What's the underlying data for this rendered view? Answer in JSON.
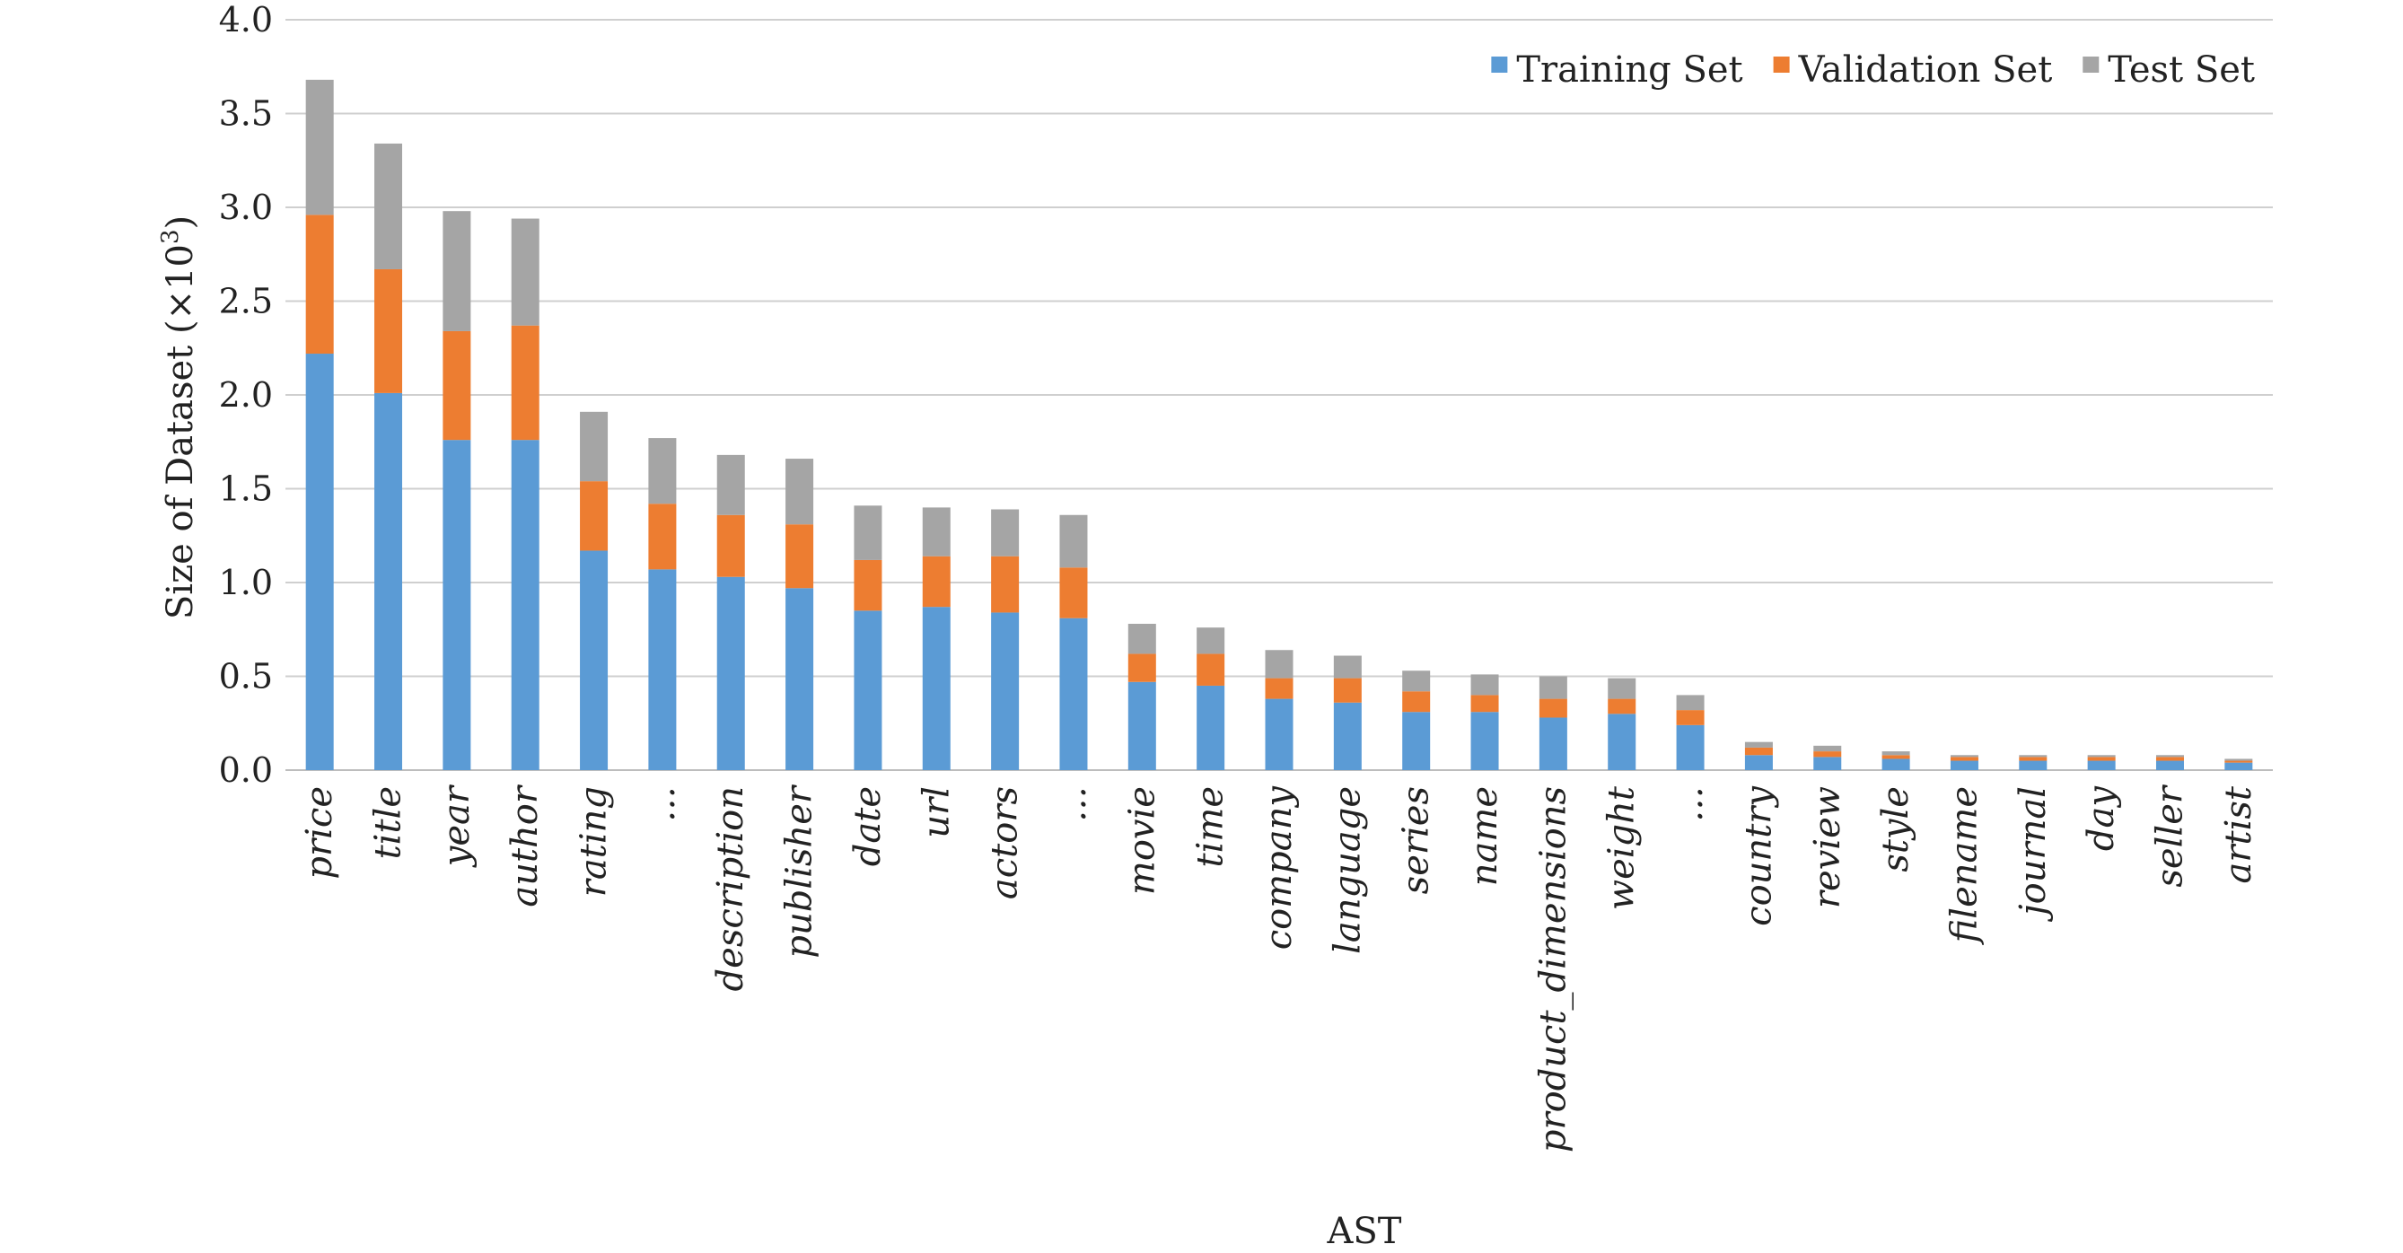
{
  "chart_data": {
    "type": "bar",
    "stacked": true,
    "title": "",
    "xlabel": "AST",
    "ylabel_prefix": "Size of Dataset (×10",
    "ylabel_exp": "3",
    "ylabel_suffix": ")",
    "ylim": [
      0,
      4.0
    ],
    "yticks": [
      "0.0",
      "0.5",
      "1.0",
      "1.5",
      "2.0",
      "2.5",
      "3.0",
      "3.5",
      "4.0"
    ],
    "grid": true,
    "legend_position": "top-right",
    "categories": [
      "price",
      "title",
      "year",
      "author",
      "rating",
      "…",
      "description",
      "publisher",
      "date",
      "url",
      "actors",
      "…",
      "movie",
      "time",
      "company",
      "language",
      "series",
      "name",
      "product_dimensions",
      "weight",
      "…",
      "country",
      "review",
      "style",
      "filename",
      "journal",
      "day",
      "seller",
      "artist"
    ],
    "series": [
      {
        "name": "Training Set",
        "color": "#5b9bd5",
        "values": [
          2.22,
          2.01,
          1.76,
          1.76,
          1.17,
          1.07,
          1.03,
          0.97,
          0.85,
          0.87,
          0.84,
          0.81,
          0.47,
          0.45,
          0.38,
          0.36,
          0.31,
          0.31,
          0.28,
          0.3,
          0.24,
          0.08,
          0.07,
          0.06,
          0.05,
          0.05,
          0.05,
          0.05,
          0.04
        ]
      },
      {
        "name": "Validation Set",
        "color": "#ed7d31",
        "values": [
          0.74,
          0.66,
          0.58,
          0.61,
          0.37,
          0.35,
          0.33,
          0.34,
          0.27,
          0.27,
          0.3,
          0.27,
          0.15,
          0.17,
          0.11,
          0.13,
          0.11,
          0.09,
          0.1,
          0.08,
          0.08,
          0.04,
          0.03,
          0.02,
          0.02,
          0.02,
          0.02,
          0.02,
          0.01
        ]
      },
      {
        "name": "Test Set",
        "color": "#a5a5a5",
        "values": [
          0.72,
          0.67,
          0.64,
          0.57,
          0.37,
          0.35,
          0.32,
          0.35,
          0.29,
          0.26,
          0.25,
          0.28,
          0.16,
          0.14,
          0.15,
          0.12,
          0.11,
          0.11,
          0.12,
          0.11,
          0.08,
          0.03,
          0.03,
          0.02,
          0.01,
          0.01,
          0.01,
          0.01,
          0.01
        ]
      }
    ]
  }
}
